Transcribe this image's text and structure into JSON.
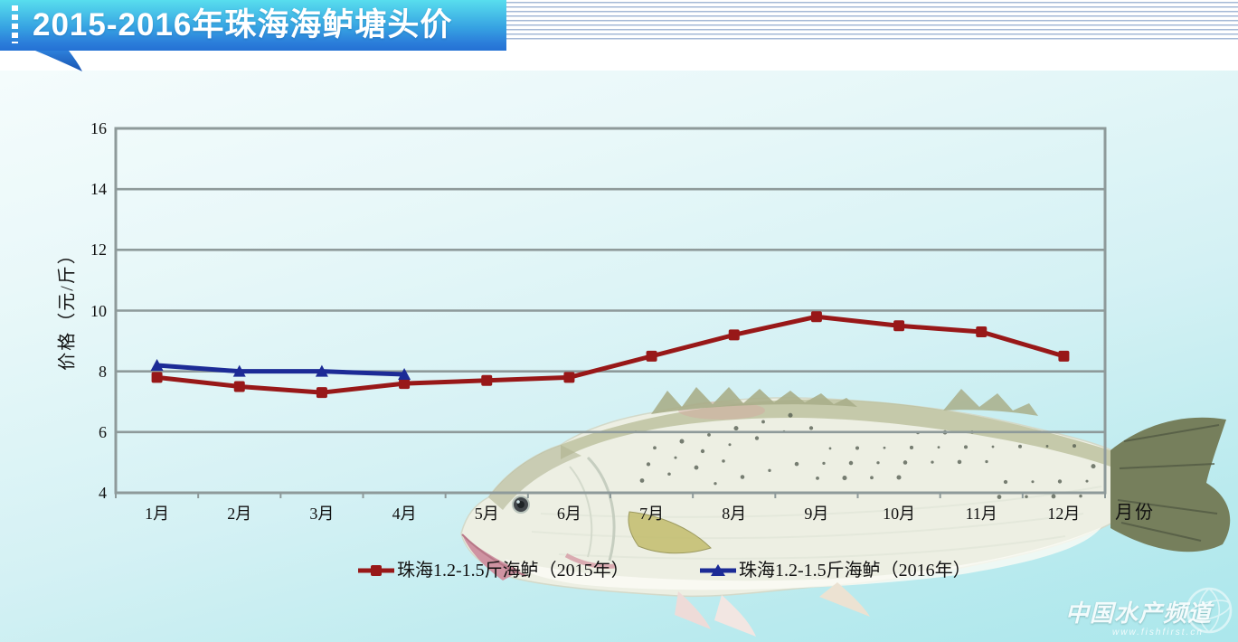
{
  "banner": {
    "title": "2015-2016年珠海海鲈塘头价"
  },
  "chart_data": {
    "type": "line",
    "categories": [
      "1月",
      "2月",
      "3月",
      "4月",
      "5月",
      "6月",
      "7月",
      "8月",
      "9月",
      "10月",
      "11月",
      "12月"
    ],
    "series": [
      {
        "name": "珠海1.2-1.5斤海鲈（2015年）",
        "color": "#981818",
        "marker": "square",
        "values": [
          7.8,
          7.5,
          7.3,
          7.6,
          7.7,
          7.8,
          8.5,
          9.2,
          9.8,
          9.5,
          9.3,
          8.5
        ]
      },
      {
        "name": "珠海1.2-1.5斤海鲈（2016年）",
        "color": "#1c2b96",
        "marker": "triangle",
        "values": [
          8.2,
          8.0,
          8.0,
          7.9,
          null,
          null,
          null,
          null,
          null,
          null,
          null,
          null
        ]
      }
    ],
    "xlabel": "月份",
    "ylabel": "价格（元/斤）",
    "ylim": [
      4,
      16
    ],
    "ytick_step": 2,
    "grid": true,
    "gridline_color": "#8e9a9a",
    "legend_position": "bottom"
  },
  "watermark": {
    "title": "中国水产频道",
    "subtitle": "www.fishfirst.cn"
  }
}
